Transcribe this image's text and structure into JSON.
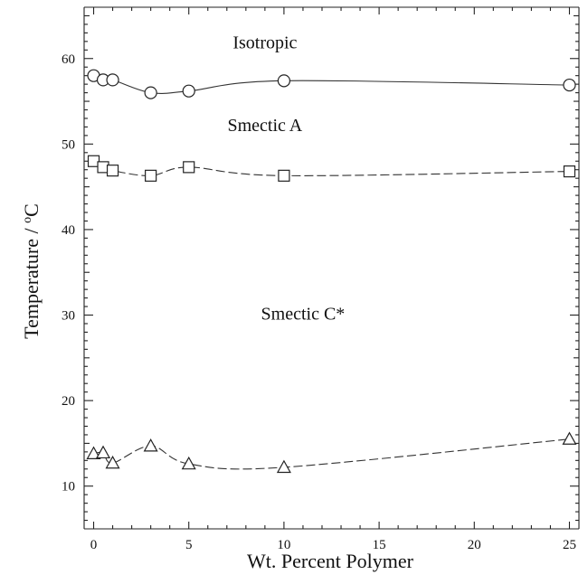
{
  "chart_data": {
    "type": "scatter",
    "title": "",
    "xlabel": "Wt. Percent Polymer",
    "ylabel": "Temperature / °C",
    "xlim": [
      -0.5,
      25.5
    ],
    "ylim": [
      5,
      66
    ],
    "xticks": [
      0,
      5,
      10,
      15,
      20,
      25
    ],
    "yticks": [
      10,
      20,
      30,
      40,
      50,
      60
    ],
    "grid": false,
    "series": [
      {
        "marker": "circle",
        "line": "solid",
        "x": [
          0,
          0.5,
          1,
          3,
          5,
          10,
          25
        ],
        "y": [
          58,
          57.5,
          57.5,
          56,
          56.2,
          57.4,
          56.9
        ]
      },
      {
        "marker": "square",
        "line": "dashed",
        "x": [
          0,
          0.5,
          1,
          3,
          5,
          10,
          25
        ],
        "y": [
          48,
          47.3,
          46.9,
          46.3,
          47.3,
          46.3,
          46.8
        ]
      },
      {
        "marker": "triangle",
        "line": "dashed",
        "x": [
          0,
          0.5,
          1,
          3,
          5,
          10,
          25
        ],
        "y": [
          13.8,
          13.9,
          12.7,
          14.7,
          12.6,
          12.2,
          15.5
        ]
      }
    ],
    "annotations": [
      {
        "text": "Isotropic",
        "x": 9,
        "y": 61.2
      },
      {
        "text": "Smectic A",
        "x": 9,
        "y": 51.5
      },
      {
        "text": "Smectic C*",
        "x": 11,
        "y": 29.5
      }
    ]
  }
}
